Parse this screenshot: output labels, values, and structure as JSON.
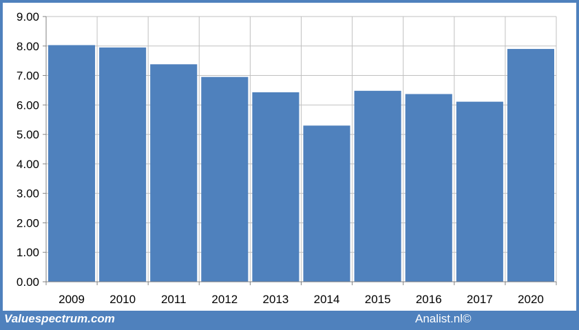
{
  "chart_data": {
    "type": "bar",
    "categories": [
      "2009",
      "2010",
      "2011",
      "2012",
      "2013",
      "2014",
      "2015",
      "2016",
      "2017",
      "2020"
    ],
    "values": [
      8.03,
      7.95,
      7.38,
      6.95,
      6.43,
      5.3,
      6.48,
      6.37,
      6.11,
      7.9
    ],
    "yticks": [
      "0.00",
      "1.00",
      "2.00",
      "3.00",
      "4.00",
      "5.00",
      "6.00",
      "7.00",
      "8.00",
      "9.00"
    ],
    "ylim": [
      0,
      9
    ],
    "title": "",
    "xlabel": "",
    "ylabel": "",
    "grid": true,
    "legend": "none",
    "bar_color": "#4f81bd",
    "grid_color": "#c0c0c0"
  },
  "footer": {
    "brand": "Valuespectrum.com",
    "credit": "Analist.nl©",
    "band_color": "#4f81bd"
  }
}
